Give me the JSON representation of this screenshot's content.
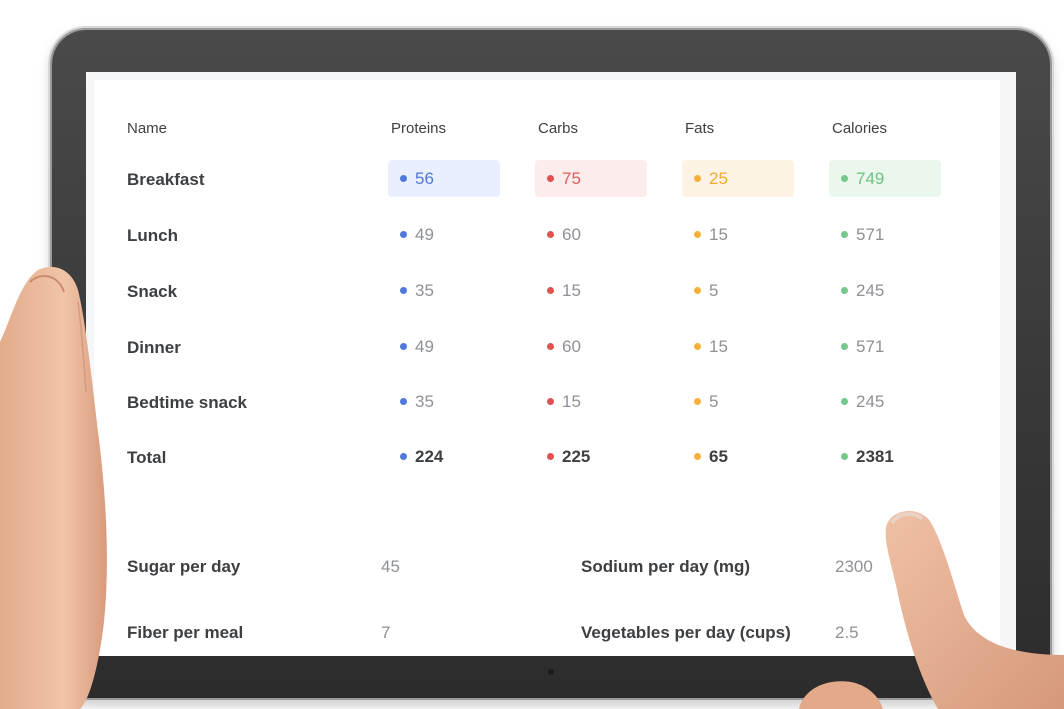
{
  "table": {
    "headers": [
      "Name",
      "Proteins",
      "Carbs",
      "Fats",
      "Calories"
    ],
    "rows": [
      {
        "name": "Breakfast",
        "proteins": "56",
        "carbs": "75",
        "fats": "25",
        "calories": "749"
      },
      {
        "name": "Lunch",
        "proteins": "49",
        "carbs": "60",
        "fats": "15",
        "calories": "571"
      },
      {
        "name": "Snack",
        "proteins": "35",
        "carbs": "15",
        "fats": "5",
        "calories": "245"
      },
      {
        "name": "Dinner",
        "proteins": "49",
        "carbs": "60",
        "fats": "15",
        "calories": "571"
      },
      {
        "name": "Bedtime snack",
        "proteins": "35",
        "carbs": "15",
        "fats": "5",
        "calories": "245"
      }
    ],
    "total": {
      "name": "Total",
      "proteins": "224",
      "carbs": "225",
      "fats": "65",
      "calories": "2381"
    }
  },
  "targets": [
    {
      "label": "Sugar per day",
      "value": "45"
    },
    {
      "label": "Sodium per day (mg)",
      "value": "2300"
    },
    {
      "label": "Fiber per meal",
      "value": "7"
    },
    {
      "label": "Vegetables per day (cups)",
      "value": "2.5"
    }
  ],
  "colors": {
    "proteins": "#4f78db",
    "carbs": "#e25151",
    "fats": "#f6b03c",
    "calories": "#76c78c"
  }
}
